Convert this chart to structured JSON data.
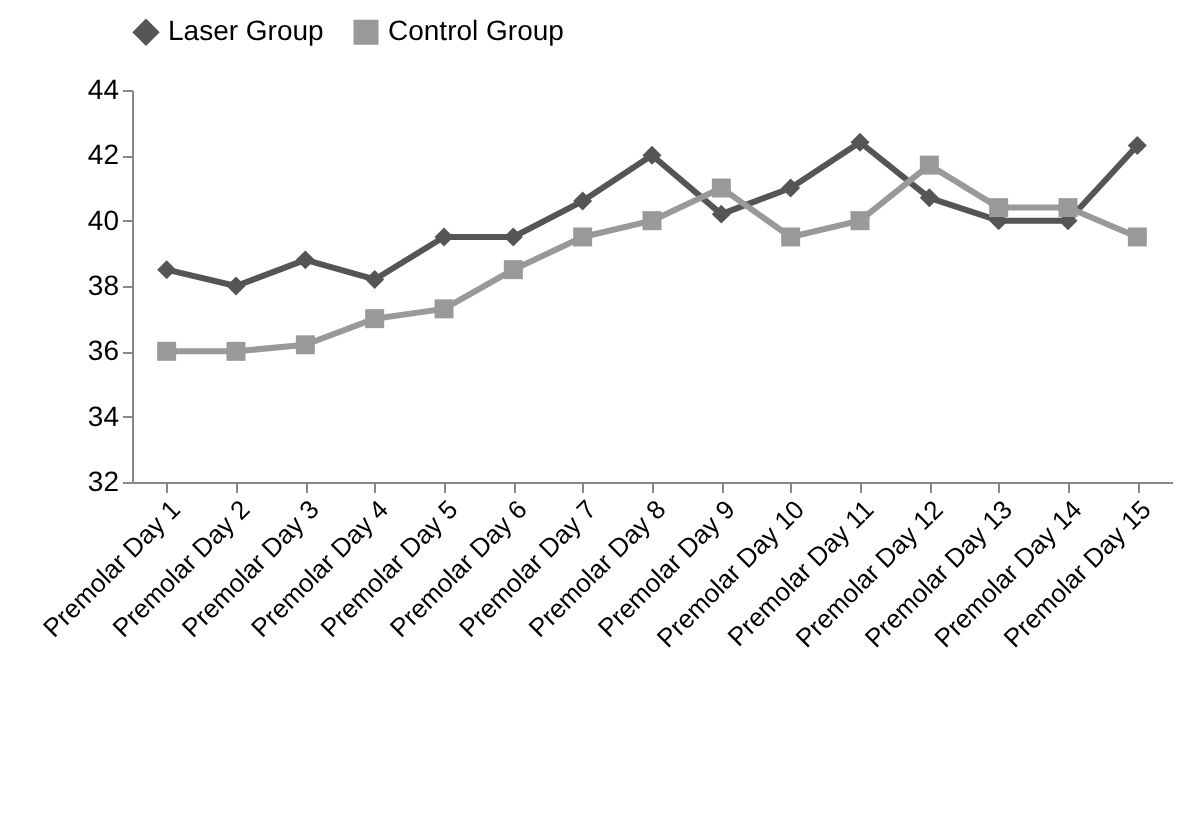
{
  "chart_data": {
    "type": "line",
    "categories": [
      "Premolar Day 1",
      "Premolar Day 2",
      "Premolar Day 3",
      "Premolar Day 4",
      "Premolar Day 5",
      "Premolar Day 6",
      "Premolar Day 7",
      "Premolar Day 8",
      "Premolar Day 9",
      "Premolar  Day 10",
      "Premolar Day 11",
      "Premolar Day 12",
      "Premolar Day 13",
      "Premolar Day 14",
      "Premolar Day 15"
    ],
    "series": [
      {
        "name": "Laser Group",
        "color": "#555555",
        "marker": "diamond",
        "values": [
          38.5,
          38.0,
          38.8,
          38.2,
          39.5,
          39.5,
          40.6,
          42.0,
          40.2,
          41.0,
          42.4,
          40.7,
          40.0,
          40.0,
          42.3
        ]
      },
      {
        "name": "Control Group",
        "color": "#999999",
        "marker": "square",
        "values": [
          36.0,
          36.0,
          36.2,
          37.0,
          37.3,
          38.5,
          39.5,
          40.0,
          41.0,
          39.5,
          40.0,
          41.7,
          40.4,
          40.4,
          39.5
        ]
      }
    ],
    "ylim": [
      32,
      44
    ],
    "yticks": [
      32,
      34,
      36,
      38,
      40,
      42,
      44
    ],
    "grid": false,
    "legend": "top"
  }
}
